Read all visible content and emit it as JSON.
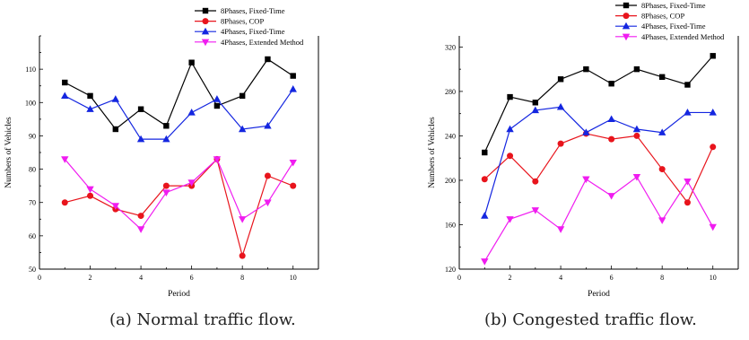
{
  "chart_data": [
    {
      "type": "line",
      "caption": "(a) Normal traffic flow.",
      "xlabel": "Period",
      "ylabel": "Numbers of Vehicles",
      "xlim": [
        0,
        11
      ],
      "ylim": [
        50,
        120
      ],
      "xticks": [
        0,
        2,
        4,
        6,
        8,
        10
      ],
      "yticks": [
        50,
        60,
        70,
        80,
        90,
        100,
        110
      ],
      "legend_position": "top-right",
      "grid": false,
      "x": [
        1,
        2,
        3,
        4,
        5,
        6,
        7,
        8,
        9,
        10
      ],
      "series": [
        {
          "name": "8Phases, Fixed-Time",
          "color": "#000000",
          "marker": "square",
          "values": [
            106,
            102,
            92,
            98,
            93,
            112,
            99,
            102,
            113,
            108
          ]
        },
        {
          "name": "8Phases, COP",
          "color": "#e8141c",
          "marker": "circle",
          "values": [
            70,
            72,
            68,
            66,
            75,
            75,
            83,
            54,
            78,
            75
          ]
        },
        {
          "name": "4Phases, Fixed-Time",
          "color": "#1426e0",
          "marker": "triangle-up",
          "values": [
            102,
            98,
            101,
            89,
            89,
            97,
            101,
            92,
            93,
            104
          ]
        },
        {
          "name": "4Phases, Extended Method",
          "color": "#f01cf0",
          "marker": "triangle-down",
          "values": [
            83,
            74,
            69,
            62,
            73,
            76,
            83,
            65,
            70,
            82
          ]
        }
      ]
    },
    {
      "type": "line",
      "caption": "(b) Congested traffic flow.",
      "xlabel": "Period",
      "ylabel": "Numbers of Vehicles",
      "xlim": [
        0,
        11
      ],
      "ylim": [
        120,
        330
      ],
      "xticks": [
        0,
        2,
        4,
        6,
        8,
        10
      ],
      "yticks": [
        120,
        160,
        200,
        240,
        280,
        320
      ],
      "legend_position": "top-right",
      "grid": false,
      "x": [
        1,
        2,
        3,
        4,
        5,
        6,
        7,
        8,
        9,
        10
      ],
      "series": [
        {
          "name": "8Phases, Fixed-Time",
          "color": "#000000",
          "marker": "square",
          "values": [
            225,
            275,
            270,
            291,
            300,
            287,
            300,
            293,
            286,
            312
          ]
        },
        {
          "name": "8Phases, COP",
          "color": "#e8141c",
          "marker": "circle",
          "values": [
            201,
            222,
            199,
            233,
            242,
            237,
            240,
            210,
            180,
            230
          ]
        },
        {
          "name": "4Phases, Fixed-Time",
          "color": "#1426e0",
          "marker": "triangle-up",
          "values": [
            168,
            246,
            263,
            266,
            243,
            255,
            246,
            243,
            261,
            261
          ]
        },
        {
          "name": "4Phases, Extended Method",
          "color": "#f01cf0",
          "marker": "triangle-down",
          "values": [
            127,
            165,
            173,
            156,
            201,
            186,
            203,
            164,
            199,
            158
          ]
        }
      ]
    }
  ]
}
